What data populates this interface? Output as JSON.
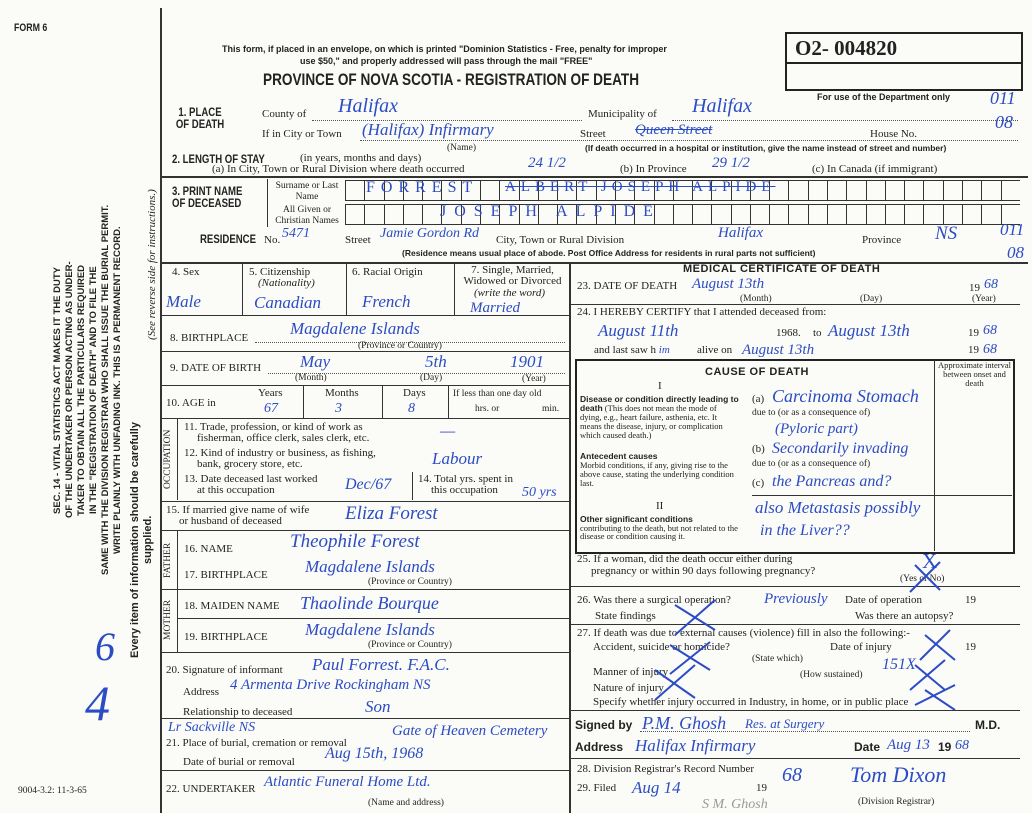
{
  "form_label": "FORM 6",
  "form_code": "9004-3.2: 11-3-65",
  "mail_notice": [
    "This form, if placed in an envelope, on which is printed \"Dominion Statistics - Free, penalty for improper",
    "use $50,\" and properly addressed will pass through the mail \"FREE\""
  ],
  "title": "PROVINCE OF NOVA SCOTIA - REGISTRATION OF DEATH",
  "registration_number": "O2- 004820",
  "dept_use_label": "For use of the Department only",
  "dept_marks": [
    "011",
    "08"
  ],
  "residence_marks": [
    "011",
    "08"
  ],
  "side_notice": [
    "SEC. 14 - VITAL STATISTICS ACT MAKES IT THE DUTY",
    "OF THE UNDERTAKER OR PERSON ACTING AS UNDER-",
    "TAKER TO OBTAIN ALL THE PARTICULARS REQUIRED",
    "IN THE \"REGISTRATION OF DEATH\" AND TO FILE THE",
    "SAME WITH THE DIVISION REGISTRAR WHO SHALL ISSUE THE BURIAL PERMIT.",
    "WRITE PLAINLY WITH UNFADING INK. THIS IS A PERMANENT RECORD."
  ],
  "side_supply": "Every item of information should be carefully supplied.",
  "side_reverse": "(See reverse side for instructions.)",
  "margin_marks": [
    "6",
    "4"
  ],
  "place": {
    "label": "1. PLACE OF DEATH",
    "county_label": "County of",
    "county": "Halifax",
    "municipality_label": "Municipality of",
    "municipality": "Halifax",
    "city_label": "If in City or Town",
    "city": "(Halifax) Infirmary",
    "name_label": "(Name)",
    "street_label": "Street",
    "street": "Queen Street",
    "house_label": "House No.",
    "hospital_note": "(If death occurred in a hospital or institution, give the name instead of street and number)"
  },
  "stay": {
    "label": "2. LENGTH OF STAY",
    "label_note": "(in years, months and days)",
    "a_label": "(a) In City, Town or Rural Division where death occurred",
    "a": "24 1/2",
    "b_label": "(b) In Province",
    "b": "29 1/2",
    "c_label": "(c) In Canada (if immigrant)"
  },
  "name": {
    "label": "3. PRINT NAME OF DECEASED",
    "surname_label": "Surname or Last Name",
    "surname": "FORREST",
    "surname_struck": "ALBERT JOSEPH ALPIDE",
    "given_label": "All Given or Christian Names",
    "given": "JOSEPH ALPIDE"
  },
  "residence": {
    "label": "RESIDENCE",
    "no_label": "No.",
    "no": "5471",
    "street_label": "Street",
    "street": "Jamie Gordon Rd",
    "city_label": "City, Town or Rural Division",
    "city": "Halifax",
    "province_label": "Province",
    "province": "NS",
    "note": "(Residence means usual place of abode. Post Office Address for residents in rural parts not sufficient)"
  },
  "personal": {
    "sex_label": "4. Sex",
    "sex": "Male",
    "citizenship_label": "5. Citizenship",
    "citizenship_note": "(Nationality)",
    "citizenship": "Canadian",
    "racial_label": "6. Racial Origin",
    "racial": "French",
    "marital_label": "7. Single, Married, Widowed or Divorced",
    "marital_note": "(write the word)",
    "marital": "Married"
  },
  "birthplace": {
    "label": "8. BIRTHPLACE",
    "value": "Magdalene Islands",
    "note": "(Province or Country)"
  },
  "dob": {
    "label": "9. DATE OF BIRTH",
    "month": "May",
    "day": "5th",
    "year": "1901",
    "month_label": "(Month)",
    "day_label": "(Day)",
    "year_label": "(Year)"
  },
  "age": {
    "label": "10. AGE in",
    "years_label": "Years",
    "years": "67",
    "months_label": "Months",
    "months": "3",
    "days_label": "Days",
    "days": "8",
    "lessday_label": "If less than one day old",
    "hrs_label": "hrs. or",
    "min_label": "min."
  },
  "occupation": {
    "side_label": "OCCUPATION",
    "trade_label": [
      "11. Trade, profession, or kind of work as",
      "fisherman, office clerk, sales clerk, etc."
    ],
    "trade": "—",
    "industry_label": [
      "12. Kind of industry or business, as fishing,",
      "bank, grocery store, etc."
    ],
    "industry": "Labour",
    "lastworked_label": [
      "13. Date deceased last worked",
      "at this occupation"
    ],
    "lastworked": "Dec/67",
    "total_label": [
      "14. Total yrs. spent in",
      "this occupation"
    ],
    "total": "50 yrs"
  },
  "spouse": {
    "label": [
      "15. If married give name of wife",
      "or husband of deceased"
    ],
    "value": "Eliza Forest"
  },
  "father": {
    "side_label": "FATHER",
    "name_label": "16. NAME",
    "name": "Theophile Forest",
    "birthplace_label": "17. BIRTHPLACE",
    "birthplace": "Magdalene Islands",
    "note": "(Province or Country)"
  },
  "mother": {
    "side_label": "MOTHER",
    "maiden_label": "18. MAIDEN NAME",
    "maiden": "Thaolinde Bourque",
    "birthplace_label": "19. BIRTHPLACE",
    "birthplace": "Magdalene Islands",
    "note": "(Province or Country)"
  },
  "informant": {
    "label": "20. Signature of informant",
    "signature": "Paul Forrest. F.A.C.",
    "address_label": "Address",
    "address": "4 Armenta Drive Rockingham NS",
    "relationship_label": "Relationship to deceased",
    "relationship": "Son"
  },
  "burial": {
    "label": "21. Place of burial, cremation or removal",
    "place": "Gate of Heaven Cemetery",
    "margin_note": "Lr Sackville NS",
    "date_label": "Date of burial or removal",
    "date": "Aug 15th, 1968"
  },
  "undertaker": {
    "label": "22. UNDERTAKER",
    "value": "Atlantic Funeral Home Ltd.",
    "note": "(Name and address)"
  },
  "medical": {
    "title": "MEDICAL CERTIFICATE OF DEATH",
    "dod_label": "23. DATE OF DEATH",
    "dod": "August 13th",
    "dod_year_prefix": "19",
    "dod_year": "68",
    "month_label": "(Month)",
    "day_label": "(Day)",
    "year_label": "(Year)",
    "certify_label": "24. I HEREBY CERTIFY that I attended deceased from:",
    "from": "August 11th",
    "from_year": "1968.",
    "to_label": "to",
    "to": "August 13th",
    "to_year_prefix": "19",
    "to_year": "68",
    "lastsaw_label": "and last saw h",
    "lastsaw_him": "im",
    "alive_label": "alive on",
    "alive": "August 13th",
    "alive_year_prefix": "19",
    "alive_year": "68"
  },
  "cause": {
    "title": "CAUSE OF DEATH",
    "interval_label": "Approximate interval between onset and death",
    "part1": "I",
    "direct_label": "Disease or condition directly leading to death",
    "direct_note": "(This does not mean the mode of dying, e.g., heart failure, asthenia, etc. It means the disease, injury, or complication which caused death.)",
    "a_label": "(a)",
    "a": "Carcinoma Stomach",
    "due_label": "due to (or as a consequence of)",
    "a2": "(Pyloric part)",
    "antecedent_label": "Antecedent causes",
    "antecedent_note": "Morbid conditions, if any, giving rise to the above cause, stating the underlying condition last.",
    "b_label": "(b)",
    "b": "Secondarily invading",
    "due2_label": "due to (or as a consequence of)",
    "c_label": "(c)",
    "c": "the Pancreas and?",
    "part2": "II",
    "other_label": "Other significant conditions",
    "other_note": "contributing to the death, but not related to the disease or condition causing it.",
    "other": "also Metastasis possibly",
    "other2": "in the Liver??"
  },
  "q25": {
    "label": [
      "25. If a woman, did the death occur either during",
      "pregnancy or within 90 days following pregnancy?"
    ],
    "note": "(Yes or No)",
    "value": "X"
  },
  "q26": {
    "label": "26. Was there a surgical operation?",
    "value": "Previously",
    "date_label": "Date of operation",
    "year_prefix": "19",
    "findings_label": "State findings",
    "autopsy_label": "Was there an autopsy?"
  },
  "q27": {
    "label": "27. If death was due to external causes (violence) fill in also the following:-",
    "accident_label": "Accident, suicide or homicide?",
    "state_which": "(State which)",
    "date_label": "Date of injury",
    "year_prefix": "19",
    "manner_label": "Manner of injury",
    "how_label": "(How sustained)",
    "manner_mark": "151X",
    "nature_label": "Nature of injury",
    "specify_label": "Specify whether injury occurred in Industry, in home, or in public place"
  },
  "signed": {
    "label": "Signed by",
    "signature": "P.M. Ghosh",
    "stamp": "Res. at Surgery",
    "md": "M.D.",
    "address_label": "Address",
    "address": "Halifax Infirmary",
    "date_label": "Date",
    "date": "Aug 13",
    "year_prefix": "19",
    "year": "68"
  },
  "q28": {
    "label": "28. Division Registrar's Record Number"
  },
  "q29": {
    "label": "29. Filed",
    "filed": "Aug 14",
    "year_prefix": "19",
    "year": "68",
    "registrar": "Tom Dixon",
    "registrar_label": "(Division Registrar)",
    "pencil_note": "S M. Ghosh"
  },
  "colors": {
    "ink": "#2b4cc4",
    "print": "#222222",
    "paper": "#fbfbf8"
  }
}
